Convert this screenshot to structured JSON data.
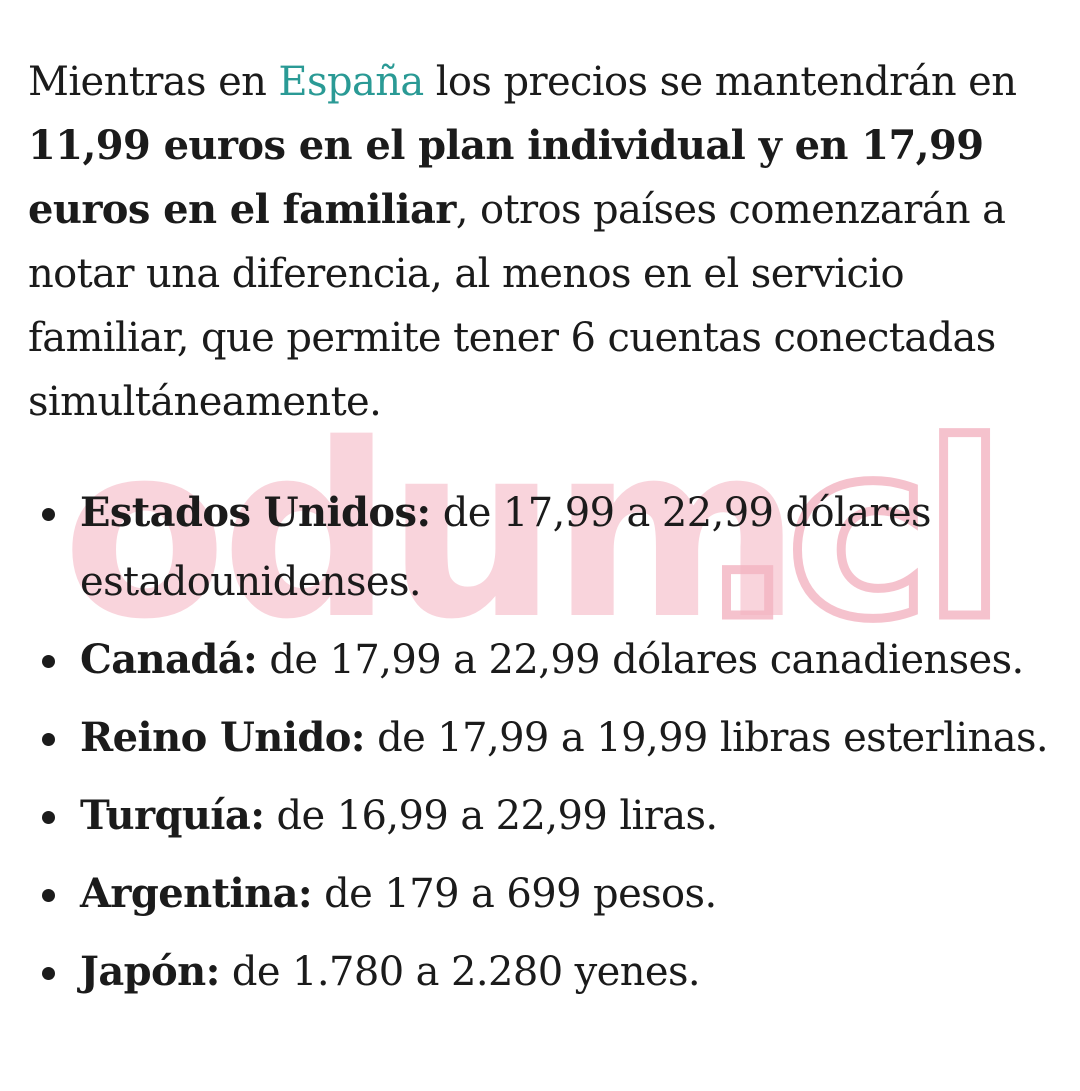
{
  "intro": {
    "before_link": "Mientras en ",
    "link_text": "España",
    "after_link": " los precios se mantendrán en ",
    "bold_text": "11,99 euros en el plan individual y en 17,99 euros en el familiar",
    "rest": ", otros países comenzarán a notar una diferencia, al menos en el servicio familiar, que permite tener 6 cuentas conectadas simultáneamente."
  },
  "price_list": [
    {
      "country": "Estados Unidos:",
      "detail": " de 17,99 a 22,99 dólares estadounidenses."
    },
    {
      "country": "Canadá:",
      "detail": " de 17,99 a 22,99 dólares canadienses."
    },
    {
      "country": "Reino Unido:",
      "detail": " de 17,99 a 19,99 libras esterlinas."
    },
    {
      "country": "Turquía:",
      "detail": " de 16,99 a 22,99 liras."
    },
    {
      "country": "Argentina:",
      "detail": " de 179 a 699 pesos."
    },
    {
      "country": "Japón:",
      "detail": " de 1.780 a 2.280 yenes."
    }
  ],
  "watermark": {
    "text_main": "odum",
    "text_suffix": ".cl",
    "fill_color": "#f7c6d0",
    "outline_color": "#f3b3c0"
  },
  "colors": {
    "link": "#2a9a95",
    "text": "#1b1b1b",
    "background": "#ffffff"
  }
}
